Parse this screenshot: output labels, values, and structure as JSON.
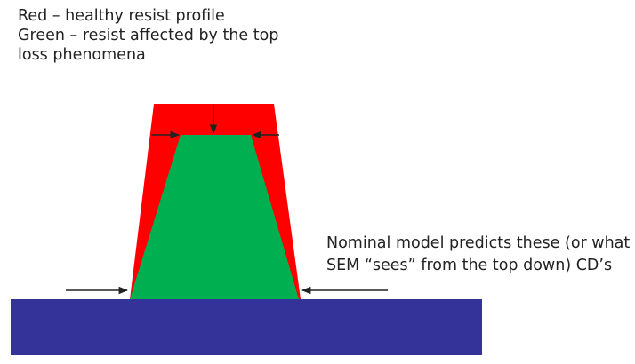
{
  "legend": {
    "line1": "Red – healthy resist profile",
    "line2": "Green – resist affected by the top",
    "line3": "loss phenomena"
  },
  "annotation": {
    "line1": "Nominal model predicts these (or what",
    "line2": "SEM “sees” from the top down) CD’s"
  },
  "colors": {
    "healthy_resist": "#ff0000",
    "affected_resist": "#00b050",
    "substrate": "#333399",
    "arrow": "#222222"
  }
}
